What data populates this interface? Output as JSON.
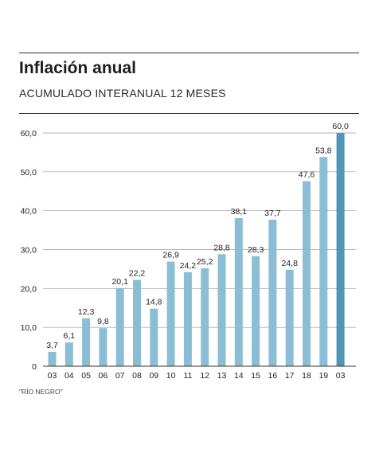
{
  "header": {
    "title": "Inflación anual",
    "subtitle": "ACUMULADO INTERANUAL 12 MESES"
  },
  "source": "\"RÍO NEGRO\"",
  "colors": {
    "bar": "#8bbdd5",
    "bar_highlight": "#4e97b6",
    "grid": "#9a9a9a",
    "axis": "#333333",
    "text": "#222222"
  },
  "chart_data": {
    "type": "bar",
    "title": "Inflación anual",
    "subtitle": "ACUMULADO INTERANUAL 12 MESES",
    "categories": [
      "03",
      "04",
      "05",
      "06",
      "07",
      "08",
      "09",
      "10",
      "11",
      "12",
      "13",
      "14",
      "15",
      "16",
      "17",
      "18",
      "19",
      "03"
    ],
    "values": [
      3.7,
      6.1,
      12.3,
      9.8,
      20.1,
      22.2,
      14.8,
      26.9,
      24.2,
      25.2,
      28.8,
      38.1,
      28.3,
      37.7,
      24.8,
      47.6,
      53.8,
      60.0
    ],
    "value_labels": [
      "3,7",
      "6,1",
      "12,3",
      "9,8",
      "20,1",
      "22,2",
      "14,8",
      "26,9",
      "24,2",
      "25,2",
      "28,8",
      "38,1",
      "28,3",
      "37,7",
      "24,8",
      "47,6",
      "53,8",
      "60,0"
    ],
    "highlight_index": 17,
    "ylim": [
      0,
      60
    ],
    "yticks": [
      0,
      10,
      20,
      30,
      40,
      50,
      60
    ],
    "ytick_labels": [
      "0",
      "10,0",
      "20,0",
      "30,0",
      "40,0",
      "50,0",
      "60,0"
    ],
    "grid": true,
    "xlabel": "",
    "ylabel": ""
  }
}
